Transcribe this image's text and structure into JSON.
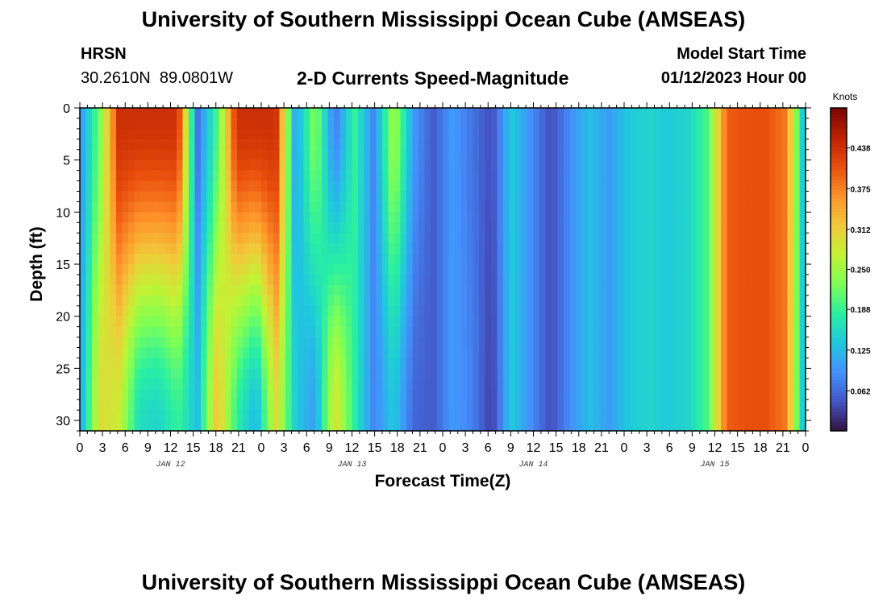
{
  "header": {
    "title": "University of Southern Mississippi Ocean Cube (AMSEAS)",
    "station_name": "HRSN",
    "station_coords": "30.2610N  89.0801W",
    "chart_title": "2-D Currents Speed-Magnitude",
    "model_start_label": "Model Start Time",
    "model_start_value": "01/12/2023 Hour 00"
  },
  "footer": {
    "title": "University of Southern Mississippi Ocean Cube (AMSEAS)"
  },
  "chart_data": {
    "type": "heatmap",
    "title": "2-D Currents Speed-Magnitude",
    "xlabel": "Forecast Time(Z)",
    "ylabel": "Depth (ft)",
    "x_unit": "hours since 01/12/2023 00Z",
    "xlim": [
      0,
      96
    ],
    "ylim": [
      31,
      0
    ],
    "x_ticks": [
      0,
      3,
      6,
      9,
      12,
      15,
      18,
      21,
      24,
      27,
      30,
      33,
      36,
      39,
      42,
      45,
      48,
      51,
      54,
      57,
      60,
      63,
      66,
      69,
      72,
      75,
      78,
      81,
      84,
      87,
      90,
      93,
      96
    ],
    "x_tick_labels": [
      "0",
      "3",
      "6",
      "9",
      "12",
      "15",
      "18",
      "21",
      "0",
      "3",
      "6",
      "9",
      "12",
      "15",
      "18",
      "21",
      "0",
      "3",
      "6",
      "9",
      "12",
      "15",
      "18",
      "21",
      "0",
      "3",
      "6",
      "9",
      "12",
      "15",
      "18",
      "21",
      "0"
    ],
    "y_ticks": [
      0,
      5,
      10,
      15,
      20,
      25,
      30
    ],
    "y_tick_labels": [
      "0",
      "5",
      "10",
      "15",
      "20",
      "25",
      "30"
    ],
    "date_labels": [
      {
        "text": "JAN 12",
        "hour": 12
      },
      {
        "text": "JAN 13",
        "hour": 36
      },
      {
        "text": "JAN 14",
        "hour": 60
      },
      {
        "text": "JAN 15",
        "hour": 84
      }
    ],
    "colorbar": {
      "label": "Knots",
      "vmin": 0.0,
      "vmax": 0.5,
      "ticks": [
        0.062,
        0.125,
        0.188,
        0.25,
        0.312,
        0.375,
        0.438
      ],
      "tick_labels": [
        "0.062",
        "0.125",
        "0.188",
        "0.250",
        "0.312",
        "0.375",
        "0.438"
      ],
      "colormap": [
        "#30123b",
        "#4454c4",
        "#4490fe",
        "#1fc8de",
        "#29efa2",
        "#7dff56",
        "#c1f334",
        "#f1ca3a",
        "#fe922a",
        "#ea4f0d",
        "#be2102",
        "#7a0403"
      ]
    },
    "speed_knots_surface": [
      0.09,
      0.22,
      0.44,
      0.44,
      0.44,
      0.44,
      0.07,
      0.2,
      0.44,
      0.44,
      0.44,
      0.1,
      0.24,
      0.07,
      0.19,
      0.08,
      0.26,
      0.1,
      0.05,
      0.1,
      0.07,
      0.04,
      0.14,
      0.09,
      0.04,
      0.09,
      0.13,
      0.1,
      0.14,
      0.15,
      0.14,
      0.15,
      0.2,
      0.4,
      0.41,
      0.41,
      0.38,
      0.1
    ],
    "speed_knots_bottom": [
      0.1,
      0.3,
      0.28,
      0.16,
      0.15,
      0.19,
      0.13,
      0.33,
      0.18,
      0.12,
      0.3,
      0.14,
      0.1,
      0.3,
      0.18,
      0.08,
      0.14,
      0.06,
      0.05,
      0.1,
      0.08,
      0.03,
      0.14,
      0.09,
      0.04,
      0.09,
      0.13,
      0.1,
      0.14,
      0.15,
      0.14,
      0.15,
      0.2,
      0.4,
      0.41,
      0.41,
      0.38,
      0.1
    ]
  }
}
